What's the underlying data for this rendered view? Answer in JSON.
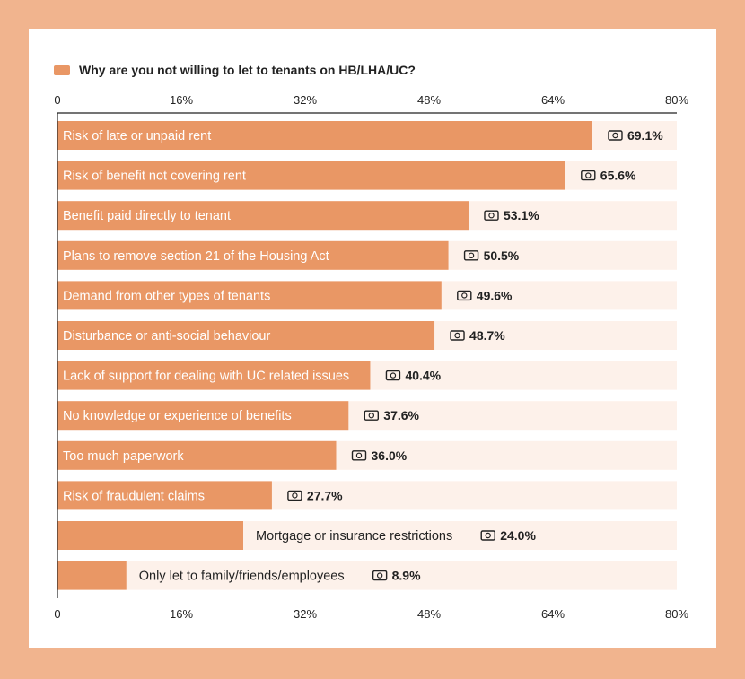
{
  "chart_data": {
    "type": "bar",
    "orientation": "horizontal",
    "title": "",
    "legend": [
      "Why are you not willing to let to tenants on HB/LHA/UC?"
    ],
    "legend_position": "top-left",
    "xlim": [
      0,
      80
    ],
    "xticks": [
      0,
      16,
      32,
      48,
      64,
      80
    ],
    "tick_labels": [
      "0",
      "16%",
      "32%",
      "48%",
      "64%",
      "80%"
    ],
    "categories": [
      "Risk of late or unpaid rent",
      "Risk of benefit not covering rent",
      "Benefit paid directly to tenant",
      "Plans to remove section 21 of the Housing Act",
      "Demand from other types of tenants",
      "Disturbance or anti-social behaviour",
      "Lack of support for dealing with UC related issues",
      "No knowledge or experience of benefits",
      "Too much paperwork",
      "Risk of fraudulent claims",
      "Mortgage or insurance restrictions",
      "Only let to family/friends/employees"
    ],
    "values": [
      69.1,
      65.6,
      53.1,
      50.5,
      49.6,
      48.7,
      40.4,
      37.6,
      36.0,
      27.7,
      24.0,
      8.9
    ],
    "value_labels": [
      "69.1%",
      "65.6%",
      "53.1%",
      "50.5%",
      "49.6%",
      "48.7%",
      "40.4%",
      "37.6%",
      "36.0%",
      "27.7%",
      "24.0%",
      "8.9%"
    ],
    "label_inside_bar": [
      true,
      true,
      true,
      true,
      true,
      true,
      true,
      true,
      true,
      true,
      false,
      false
    ],
    "colors": {
      "bar": "#e99765",
      "track": "#fdf1ea",
      "axis": "#222222",
      "background": "#f1b48e",
      "card": "#ffffff"
    },
    "value_icon": "money-note-icon"
  }
}
